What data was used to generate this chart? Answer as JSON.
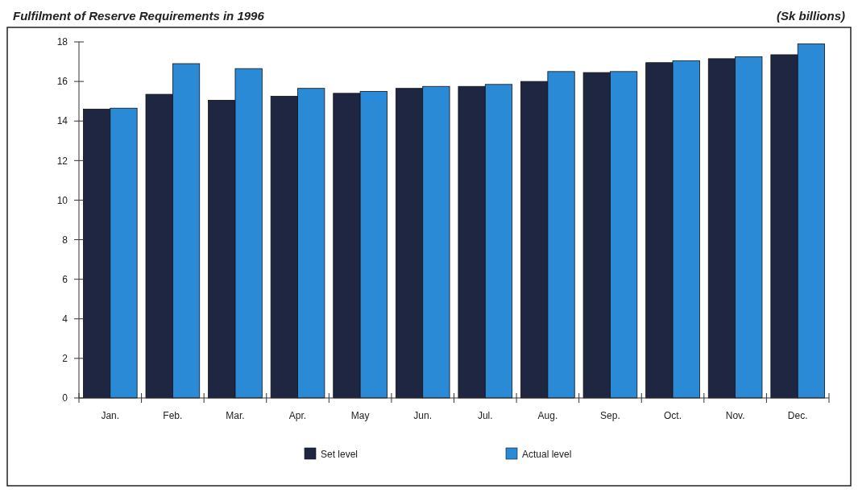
{
  "chart_data": {
    "type": "bar",
    "title": "Fulfilment of Reserve Requirements in 1996",
    "subtitle": "(Sk billions)",
    "categories": [
      "Jan.",
      "Feb.",
      "Mar.",
      "Apr.",
      "May",
      "Jun.",
      "Jul.",
      "Aug.",
      "Sep.",
      "Oct.",
      "Nov.",
      "Dec."
    ],
    "series": [
      {
        "name": "Set level",
        "color": "#1e2642",
        "values": [
          14.6,
          15.35,
          15.05,
          15.25,
          15.4,
          15.65,
          15.75,
          16.0,
          16.45,
          16.95,
          17.15,
          17.35
        ]
      },
      {
        "name": "Actual level",
        "color": "#2b8ad6",
        "values": [
          14.65,
          16.9,
          16.65,
          15.65,
          15.5,
          15.75,
          15.85,
          16.5,
          16.5,
          17.05,
          17.25,
          17.9
        ]
      }
    ],
    "ylim": [
      0,
      18
    ],
    "yticks": [
      0,
      2,
      4,
      6,
      8,
      10,
      12,
      14,
      16,
      18
    ],
    "grid": false,
    "legend": "bottom"
  }
}
